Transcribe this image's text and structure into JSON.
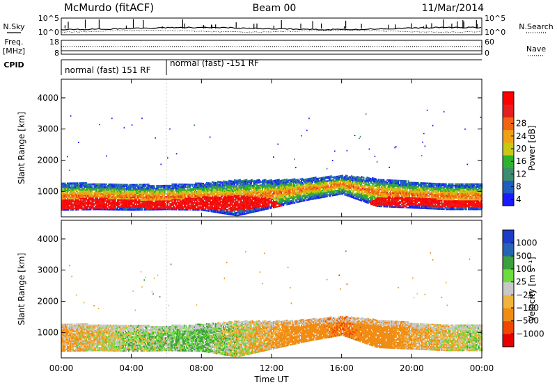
{
  "header": {
    "station": "McMurdo (fitACF)",
    "beam": "Beam 00",
    "date": "11/Mar/2014"
  },
  "side_labels": {
    "nsky": "N.Sky",
    "nsearch": "N.Search",
    "freq": "Freq.",
    "freq_unit": "[MHz]",
    "nave": "Nave",
    "cpid": "CPID"
  },
  "noise_panel": {
    "left_ticks": [
      "10^5",
      "10^0"
    ],
    "right_ticks": [
      "10^5",
      "10^0"
    ]
  },
  "freq_panel": {
    "left_ticks": [
      "18",
      "8"
    ],
    "right_ticks": [
      "60",
      "0"
    ]
  },
  "cpid_panel": {
    "segments": [
      {
        "label": "normal (fast) 151 RF",
        "start_hour": 0.0,
        "end_hour": 6.0
      },
      {
        "label": "normal (fast) -151 RF",
        "start_hour": 6.0,
        "end_hour": 24.0
      }
    ]
  },
  "colors": {
    "power_scale": [
      "#1a1aff",
      "#1e5ec2",
      "#3c8c6e",
      "#2db32d",
      "#c8c814",
      "#f0a014",
      "#f06414",
      "#e61e1e",
      "#ff0000"
    ],
    "velocity_scale": [
      "#e60000",
      "#f04600",
      "#f08c14",
      "#f0b43c",
      "#c8c8c8",
      "#6edc3c",
      "#3ca03c",
      "#2864b4",
      "#1e3cc8"
    ]
  },
  "chart_data": [
    {
      "type": "heatmap",
      "panel": "power",
      "ylabel": "Slant Range [km]",
      "xlabel": "Time UT",
      "xlim": [
        0,
        24
      ],
      "ylim": [
        180,
        4600
      ],
      "x_ticks": [
        "00:00",
        "04:00",
        "08:00",
        "12:00",
        "16:00",
        "20:00",
        "00:00"
      ],
      "y_ticks": [
        1000,
        2000,
        3000,
        4000
      ],
      "colorbar": {
        "label": "Power [dB]",
        "ticks": [
          "4",
          "8",
          "12",
          "16",
          "20",
          "24",
          "28"
        ],
        "range": [
          0,
          30
        ]
      },
      "main_band_km": [
        {
          "hour": 0,
          "lower": 380,
          "upper": 1250,
          "core_lower": 380,
          "core_upper": 720
        },
        {
          "hour": 2,
          "lower": 400,
          "upper": 1250,
          "core_lower": 420,
          "core_upper": 780
        },
        {
          "hour": 4,
          "lower": 380,
          "upper": 1200,
          "core_lower": 450,
          "core_upper": 700
        },
        {
          "hour": 6,
          "lower": 400,
          "upper": 1200,
          "core_lower": 400,
          "core_upper": 700
        },
        {
          "hour": 8,
          "lower": 380,
          "upper": 1250,
          "core_lower": 400,
          "core_upper": 800
        },
        {
          "hour": 10,
          "lower": 200,
          "upper": 1350,
          "core_lower": 350,
          "core_upper": 850
        },
        {
          "hour": 12,
          "lower": 450,
          "upper": 1350,
          "core_lower": 500,
          "core_upper": 750
        },
        {
          "hour": 14,
          "lower": 700,
          "upper": 1400,
          "core_lower": 0,
          "core_upper": 0
        },
        {
          "hour": 16,
          "lower": 900,
          "upper": 1500,
          "core_lower": 0,
          "core_upper": 0
        },
        {
          "hour": 18,
          "lower": 500,
          "upper": 1400,
          "core_lower": 500,
          "core_upper": 800
        },
        {
          "hour": 20,
          "lower": 450,
          "upper": 1300,
          "core_lower": 500,
          "core_upper": 800
        },
        {
          "hour": 22,
          "lower": 400,
          "upper": 1250,
          "core_lower": 450,
          "core_upper": 700
        },
        {
          "hour": 24,
          "lower": 400,
          "upper": 1250,
          "core_lower": 450,
          "core_upper": 700
        }
      ]
    },
    {
      "type": "heatmap",
      "panel": "velocity",
      "ylabel": "Slant Range [km]",
      "xlabel": "Time UT",
      "xlim": [
        0,
        24
      ],
      "ylim": [
        180,
        4600
      ],
      "x_ticks": [
        "00:00",
        "04:00",
        "08:00",
        "12:00",
        "16:00",
        "20:00",
        "00:00"
      ],
      "y_ticks": [
        1000,
        2000,
        3000,
        4000
      ],
      "colorbar": {
        "label": "Velocity [m s⁻¹]",
        "ticks": [
          "1000",
          "500",
          "100",
          "25",
          "−25",
          "−100",
          "−500",
          "−1000"
        ]
      },
      "dominant_velocity_by_hour": [
        {
          "hour": 0,
          "value": -100
        },
        {
          "hour": 4,
          "value": 25
        },
        {
          "hour": 8,
          "value": 100
        },
        {
          "hour": 12,
          "value": -100
        },
        {
          "hour": 16,
          "value": -500
        },
        {
          "hour": 20,
          "value": -100
        },
        {
          "hour": 24,
          "value": 25
        }
      ]
    }
  ]
}
